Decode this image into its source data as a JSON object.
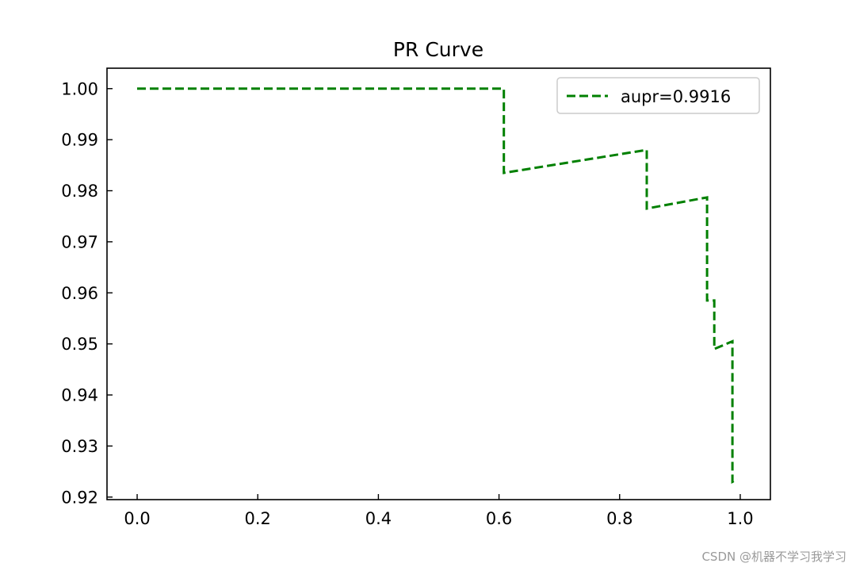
{
  "chart_data": {
    "type": "line",
    "title": "PR Curve",
    "xlabel": "",
    "ylabel": "",
    "xlim": [
      -0.05,
      1.05
    ],
    "ylim": [
      0.9195,
      1.004
    ],
    "x_ticks": [
      "0.0",
      "0.2",
      "0.4",
      "0.6",
      "0.8",
      "1.0"
    ],
    "y_ticks": [
      "0.92",
      "0.93",
      "0.94",
      "0.95",
      "0.96",
      "0.97",
      "0.98",
      "0.99",
      "1.00"
    ],
    "grid": false,
    "legend_position": "upper right",
    "series": [
      {
        "name": "aupr=0.9916",
        "color": "#008000",
        "line_style": "dashed",
        "x": [
          0.0,
          0.608,
          0.608,
          0.845,
          0.845,
          0.945,
          0.945,
          0.957,
          0.957,
          0.987,
          0.987,
          0.995
        ],
        "y": [
          1.0,
          1.0,
          0.9835,
          0.988,
          0.9765,
          0.9787,
          0.9585,
          0.9585,
          0.949,
          0.9505,
          0.923,
          0.9235
        ]
      }
    ]
  },
  "watermark": "CSDN @机器不学习我学习"
}
